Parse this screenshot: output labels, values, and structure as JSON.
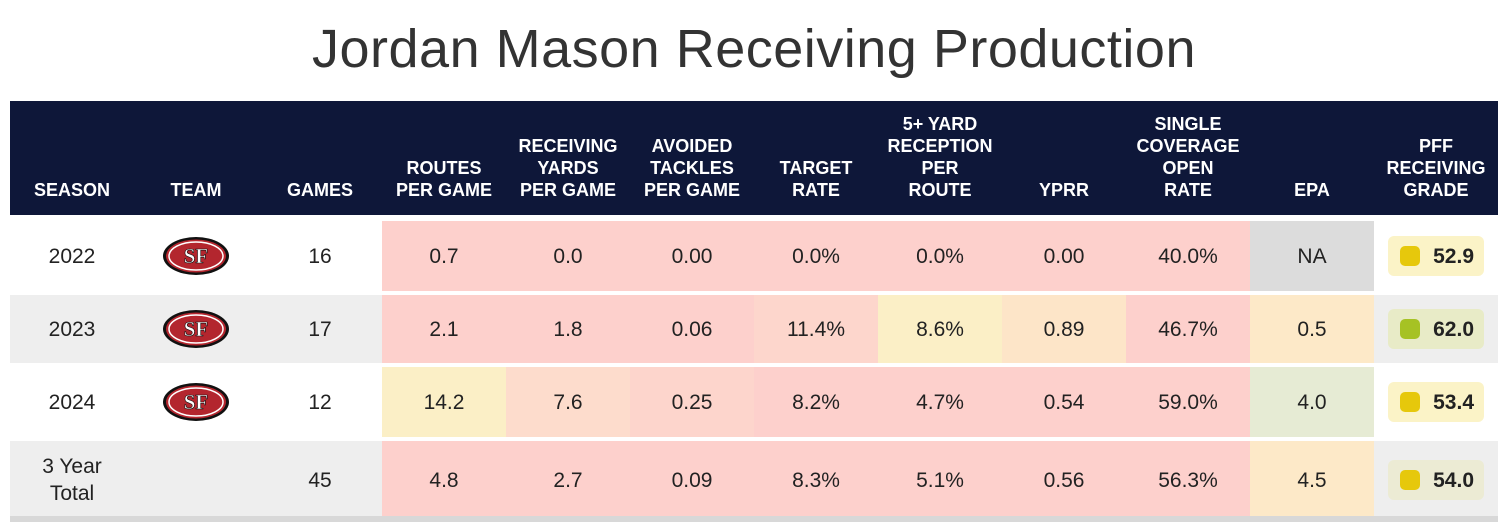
{
  "title": "Jordan Mason Receiving Production",
  "headers": {
    "season": "SEASON",
    "team": "TEAM",
    "games": "GAMES",
    "routes": "ROUTES\nPER GAME",
    "rec_yards": "RECEIVING\nYARDS\nPER GAME",
    "avoided": "AVOIDED\nTACKLES\nPER GAME",
    "target_rate": "TARGET\nRATE",
    "five_plus": "5+ YARD\nRECEPTION\nPER\nROUTE",
    "yprr": "YPRR",
    "single_cov": "SINGLE\nCOVERAGE\nOPEN\nRATE",
    "epa": "EPA",
    "grade": "PFF\nRECEIVING\nGRADE"
  },
  "team_logo": {
    "name": "49ers-logo-icon",
    "text": "SF",
    "color": "#b3262e",
    "ring": "#c9a559"
  },
  "rows": [
    {
      "season": "2022",
      "games": "16",
      "routes": "0.7",
      "rec_yards": "0.0",
      "avoided": "0.00",
      "target_rate": "0.0%",
      "five_plus": "0.0%",
      "yprr": "0.00",
      "single_cov": "40.0%",
      "epa": "NA",
      "grade": "52.9",
      "colors": {
        "routes": "#fdd0cc",
        "rec_yards": "#fdd0cc",
        "avoided": "#fdd0cc",
        "target_rate": "#fdd0cc",
        "five_plus": "#fdd0cc",
        "yprr": "#fdd0cc",
        "single_cov": "#fdd0cc",
        "epa": "#dcdcdc",
        "grade_dot": "#e6c80c"
      }
    },
    {
      "season": "2023",
      "games": "17",
      "routes": "2.1",
      "rec_yards": "1.8",
      "avoided": "0.06",
      "target_rate": "11.4%",
      "five_plus": "8.6%",
      "yprr": "0.89",
      "single_cov": "46.7%",
      "epa": "0.5",
      "grade": "62.0",
      "colors": {
        "routes": "#fdd0cc",
        "rec_yards": "#fdd0cc",
        "avoided": "#fdd0cc",
        "target_rate": "#fdd6cc",
        "five_plus": "#fbefc6",
        "yprr": "#fde5c8",
        "single_cov": "#fdd0cc",
        "epa": "#fde9c8",
        "grade_dot": "#a6c224",
        "grade_bg": "#e8ebc7"
      }
    },
    {
      "season": "2024",
      "games": "12",
      "routes": "14.2",
      "rec_yards": "7.6",
      "avoided": "0.25",
      "target_rate": "8.2%",
      "five_plus": "4.7%",
      "yprr": "0.54",
      "single_cov": "59.0%",
      "epa": "4.0",
      "grade": "53.4",
      "colors": {
        "routes": "#fbefc6",
        "rec_yards": "#fddccc",
        "avoided": "#fdd5cc",
        "target_rate": "#fdd0cc",
        "five_plus": "#fdd0cc",
        "yprr": "#fdd0cc",
        "single_cov": "#fdd0cc",
        "epa": "#e6ebd4",
        "grade_dot": "#e6c80c"
      }
    },
    {
      "season": "3 Year\nTotal",
      "games": "45",
      "routes": "4.8",
      "rec_yards": "2.7",
      "avoided": "0.09",
      "target_rate": "8.3%",
      "five_plus": "5.1%",
      "yprr": "0.56",
      "single_cov": "56.3%",
      "epa": "4.5",
      "grade": "54.0",
      "colors": {
        "routes": "#fdd0cc",
        "rec_yards": "#fdd0cc",
        "avoided": "#fdd0cc",
        "target_rate": "#fdd0cc",
        "five_plus": "#fdd0cc",
        "yprr": "#fdd0cc",
        "single_cov": "#fdd0cc",
        "epa": "#fde9c8",
        "grade_dot": "#e6c80c",
        "grade_bg": "#ecebd4"
      }
    }
  ]
}
